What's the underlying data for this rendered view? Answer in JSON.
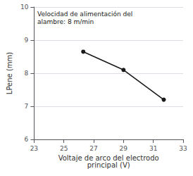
{
  "chart_data": {
    "type": "line",
    "x": [
      26.3,
      29.0,
      31.7
    ],
    "values": [
      8.65,
      8.1,
      7.2
    ],
    "xlim": [
      23,
      33
    ],
    "ylim": [
      6,
      10
    ],
    "xticks": [
      23,
      25,
      27,
      29,
      31,
      33
    ],
    "yticks": [
      6,
      7,
      8,
      9,
      10
    ],
    "xlabel": "Voltaje de arco del electrodo\nprincipal (V)",
    "ylabel": "LPene (mm)",
    "annotation": "Velocidad de alimentación del\nalambre: 8 m/min",
    "color": "#1a1a1a",
    "marker": "circle",
    "grid": true
  }
}
